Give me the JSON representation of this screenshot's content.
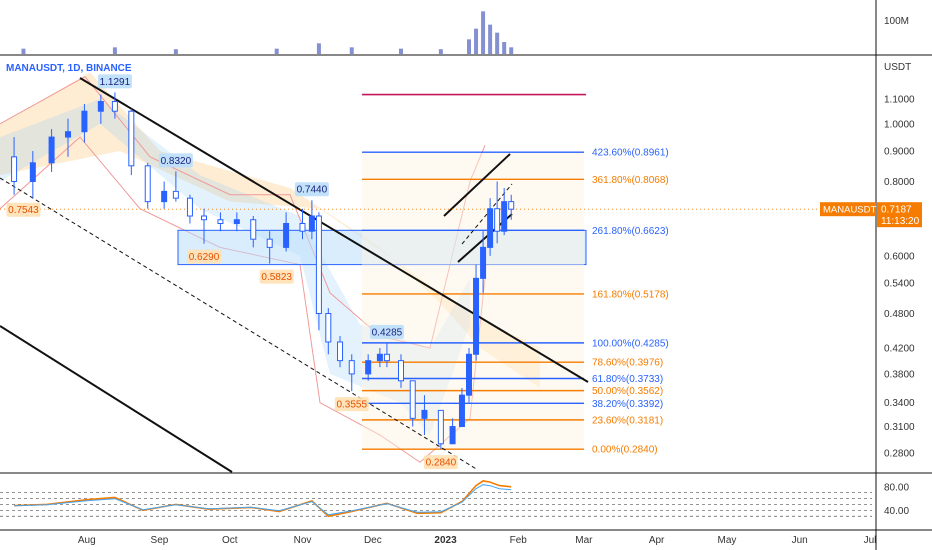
{
  "symbol": "MANAUSDT, 1D, BINANCE",
  "currency": "USDT",
  "volume_label": "100M",
  "price_tag": {
    "symbol": "MANAUSDT",
    "price": "0.7187",
    "countdown": "11:13:20",
    "value": 0.7187
  },
  "price_axis": {
    "ticks": [
      {
        "label": "1.1000",
        "value": 1.1
      },
      {
        "label": "1.0000",
        "value": 1.0
      },
      {
        "label": "0.9000",
        "value": 0.9
      },
      {
        "label": "0.8000",
        "value": 0.8
      },
      {
        "label": "0.6000",
        "value": 0.6
      },
      {
        "label": "0.5400",
        "value": 0.54
      },
      {
        "label": "0.4800",
        "value": 0.48
      },
      {
        "label": "0.4200",
        "value": 0.42
      },
      {
        "label": "0.3800",
        "value": 0.38
      },
      {
        "label": "0.3400",
        "value": 0.34
      },
      {
        "label": "0.3100",
        "value": 0.31
      },
      {
        "label": "0.2800",
        "value": 0.28
      }
    ]
  },
  "rsi_axis": {
    "ticks": [
      {
        "label": "80.00",
        "value": 80
      },
      {
        "label": "40.00",
        "value": 40
      }
    ]
  },
  "time_axis": {
    "ticks": [
      {
        "label": "Aug",
        "date": "2022-08-01"
      },
      {
        "label": "Sep",
        "date": "2022-09-01"
      },
      {
        "label": "Oct",
        "date": "2022-10-01"
      },
      {
        "label": "Nov",
        "date": "2022-11-01"
      },
      {
        "label": "Dec",
        "date": "2022-12-01"
      },
      {
        "label": "2023",
        "date": "2023-01-01"
      },
      {
        "label": "Feb",
        "date": "2023-02-01"
      },
      {
        "label": "Mar",
        "date": "2023-03-01"
      },
      {
        "label": "Apr",
        "date": "2023-04-01"
      },
      {
        "label": "May",
        "date": "2023-05-01"
      },
      {
        "label": "Jun",
        "date": "2023-06-01"
      },
      {
        "label": "Jul",
        "date": "2023-07-01"
      }
    ]
  },
  "price_labels": [
    {
      "text": "1.1291",
      "value": 1.1291,
      "date": "2022-08-13",
      "style": "blue"
    },
    {
      "text": "0.8320",
      "value": 0.832,
      "date": "2022-09-08",
      "style": "blue"
    },
    {
      "text": "0.7440",
      "value": 0.744,
      "date": "2022-11-05",
      "style": "blue"
    },
    {
      "text": "0.4285",
      "value": 0.4285,
      "date": "2022-12-07",
      "style": "blue"
    },
    {
      "text": "0.7543",
      "value": 0.7543,
      "date": "2022-07-05",
      "style": "orange"
    },
    {
      "text": "0.6290",
      "value": 0.629,
      "date": "2022-09-20",
      "style": "orange"
    },
    {
      "text": "0.5823",
      "value": 0.5823,
      "date": "2022-10-21",
      "style": "orange"
    },
    {
      "text": "0.3555",
      "value": 0.3555,
      "date": "2022-11-22",
      "style": "orange"
    },
    {
      "text": "0.2840",
      "value": 0.284,
      "date": "2022-12-30",
      "style": "orange"
    }
  ],
  "fib_levels": [
    {
      "label": "423.60%(0.8961)",
      "value": 0.8961,
      "color": "#2962ff"
    },
    {
      "label": "361.80%(0.8068)",
      "value": 0.8068,
      "color": "#f57c00"
    },
    {
      "label": "261.80%(0.6623)",
      "value": 0.6623,
      "color": "#2962ff"
    },
    {
      "label": "161.80%(0.5178)",
      "value": 0.5178,
      "color": "#f57c00"
    },
    {
      "label": "100.00%(0.4285)",
      "value": 0.4285,
      "color": "#2962ff"
    },
    {
      "label": "78.60%(0.3976)",
      "value": 0.3976,
      "color": "#f57c00"
    },
    {
      "label": "61.80%(0.3733)",
      "value": 0.3733,
      "color": "#2962ff"
    },
    {
      "label": "50.00%(0.3562)",
      "value": 0.3562,
      "color": "#f57c00"
    },
    {
      "label": "38.20%(0.3392)",
      "value": 0.3392,
      "color": "#2962ff"
    },
    {
      "label": "23.60%(0.3181)",
      "value": 0.3181,
      "color": "#f57c00"
    },
    {
      "label": "0.00%(0.2840)",
      "value": 0.284,
      "color": "#f57c00"
    }
  ],
  "chart_data": {
    "type": "candlestick",
    "title": "MANAUSDT, 1D, BINANCE",
    "price_range": [
      0.26,
      1.3
    ],
    "scale": "log",
    "x_range": [
      "2022-06-25",
      "2023-07-01"
    ],
    "ohlc": [
      {
        "date": "2022-07-01",
        "open": 0.88,
        "high": 0.95,
        "low": 0.76,
        "close": 0.8
      },
      {
        "date": "2022-07-09",
        "open": 0.8,
        "high": 0.9,
        "low": 0.75,
        "close": 0.86
      },
      {
        "date": "2022-07-17",
        "open": 0.86,
        "high": 0.98,
        "low": 0.83,
        "close": 0.95
      },
      {
        "date": "2022-07-24",
        "open": 0.95,
        "high": 1.02,
        "low": 0.88,
        "close": 0.97
      },
      {
        "date": "2022-07-31",
        "open": 0.97,
        "high": 1.08,
        "low": 0.93,
        "close": 1.05
      },
      {
        "date": "2022-08-07",
        "open": 1.05,
        "high": 1.12,
        "low": 1.0,
        "close": 1.09
      },
      {
        "date": "2022-08-13",
        "open": 1.09,
        "high": 1.1291,
        "low": 1.02,
        "close": 1.05
      },
      {
        "date": "2022-08-20",
        "open": 1.05,
        "high": 1.06,
        "low": 0.82,
        "close": 0.85
      },
      {
        "date": "2022-08-27",
        "open": 0.85,
        "high": 0.86,
        "low": 0.72,
        "close": 0.74
      },
      {
        "date": "2022-09-03",
        "open": 0.74,
        "high": 0.8,
        "low": 0.72,
        "close": 0.77
      },
      {
        "date": "2022-09-08",
        "open": 0.77,
        "high": 0.832,
        "low": 0.74,
        "close": 0.75
      },
      {
        "date": "2022-09-14",
        "open": 0.75,
        "high": 0.76,
        "low": 0.68,
        "close": 0.7
      },
      {
        "date": "2022-09-20",
        "open": 0.7,
        "high": 0.72,
        "low": 0.629,
        "close": 0.69
      },
      {
        "date": "2022-09-27",
        "open": 0.69,
        "high": 0.71,
        "low": 0.66,
        "close": 0.68
      },
      {
        "date": "2022-10-04",
        "open": 0.68,
        "high": 0.71,
        "low": 0.66,
        "close": 0.69
      },
      {
        "date": "2022-10-11",
        "open": 0.69,
        "high": 0.7,
        "low": 0.62,
        "close": 0.64
      },
      {
        "date": "2022-10-18",
        "open": 0.64,
        "high": 0.66,
        "low": 0.5823,
        "close": 0.62
      },
      {
        "date": "2022-10-25",
        "open": 0.62,
        "high": 0.71,
        "low": 0.61,
        "close": 0.68
      },
      {
        "date": "2022-11-01",
        "open": 0.68,
        "high": 0.72,
        "low": 0.64,
        "close": 0.66
      },
      {
        "date": "2022-11-05",
        "open": 0.66,
        "high": 0.744,
        "low": 0.64,
        "close": 0.7
      },
      {
        "date": "2022-11-08",
        "open": 0.7,
        "high": 0.71,
        "low": 0.45,
        "close": 0.48
      },
      {
        "date": "2022-11-12",
        "open": 0.48,
        "high": 0.49,
        "low": 0.41,
        "close": 0.43
      },
      {
        "date": "2022-11-17",
        "open": 0.43,
        "high": 0.44,
        "low": 0.39,
        "close": 0.4
      },
      {
        "date": "2022-11-22",
        "open": 0.4,
        "high": 0.41,
        "low": 0.3555,
        "close": 0.38
      },
      {
        "date": "2022-11-29",
        "open": 0.38,
        "high": 0.41,
        "low": 0.37,
        "close": 0.4
      },
      {
        "date": "2022-12-04",
        "open": 0.4,
        "high": 0.42,
        "low": 0.39,
        "close": 0.41
      },
      {
        "date": "2022-12-07",
        "open": 0.41,
        "high": 0.4285,
        "low": 0.39,
        "close": 0.4
      },
      {
        "date": "2022-12-13",
        "open": 0.4,
        "high": 0.41,
        "low": 0.36,
        "close": 0.37
      },
      {
        "date": "2022-12-18",
        "open": 0.37,
        "high": 0.37,
        "low": 0.31,
        "close": 0.32
      },
      {
        "date": "2022-12-23",
        "open": 0.32,
        "high": 0.35,
        "low": 0.3,
        "close": 0.33
      },
      {
        "date": "2022-12-30",
        "open": 0.33,
        "high": 0.33,
        "low": 0.284,
        "close": 0.29
      },
      {
        "date": "2023-01-04",
        "open": 0.29,
        "high": 0.32,
        "low": 0.29,
        "close": 0.31
      },
      {
        "date": "2023-01-08",
        "open": 0.31,
        "high": 0.36,
        "low": 0.31,
        "close": 0.35
      },
      {
        "date": "2023-01-11",
        "open": 0.35,
        "high": 0.42,
        "low": 0.34,
        "close": 0.41
      },
      {
        "date": "2023-01-14",
        "open": 0.41,
        "high": 0.58,
        "low": 0.4,
        "close": 0.55
      },
      {
        "date": "2023-01-17",
        "open": 0.55,
        "high": 0.66,
        "low": 0.52,
        "close": 0.62
      },
      {
        "date": "2023-01-20",
        "open": 0.62,
        "high": 0.75,
        "low": 0.6,
        "close": 0.72
      },
      {
        "date": "2023-01-23",
        "open": 0.72,
        "high": 0.8,
        "low": 0.63,
        "close": 0.66
      },
      {
        "date": "2023-01-26",
        "open": 0.66,
        "high": 0.78,
        "low": 0.65,
        "close": 0.74
      },
      {
        "date": "2023-01-29",
        "open": 0.74,
        "high": 0.76,
        "low": 0.69,
        "close": 0.7187
      }
    ],
    "volume": [
      {
        "date": "2022-07-05",
        "value": 20
      },
      {
        "date": "2022-08-13",
        "value": 25
      },
      {
        "date": "2022-09-08",
        "value": 18
      },
      {
        "date": "2022-10-21",
        "value": 20
      },
      {
        "date": "2022-11-08",
        "value": 40
      },
      {
        "date": "2022-11-22",
        "value": 25
      },
      {
        "date": "2022-12-13",
        "value": 20
      },
      {
        "date": "2022-12-30",
        "value": 18
      },
      {
        "date": "2023-01-11",
        "value": 55
      },
      {
        "date": "2023-01-14",
        "value": 95
      },
      {
        "date": "2023-01-17",
        "value": 160
      },
      {
        "date": "2023-01-20",
        "value": 110
      },
      {
        "date": "2023-01-23",
        "value": 80
      },
      {
        "date": "2023-01-26",
        "value": 45
      },
      {
        "date": "2023-01-29",
        "value": 25
      }
    ],
    "rsi": [
      {
        "date": "2022-07-01",
        "value": 48
      },
      {
        "date": "2022-07-15",
        "value": 50
      },
      {
        "date": "2022-08-01",
        "value": 58
      },
      {
        "date": "2022-08-13",
        "value": 62
      },
      {
        "date": "2022-08-25",
        "value": 40
      },
      {
        "date": "2022-09-08",
        "value": 50
      },
      {
        "date": "2022-09-22",
        "value": 42
      },
      {
        "date": "2022-10-10",
        "value": 45
      },
      {
        "date": "2022-10-22",
        "value": 38
      },
      {
        "date": "2022-11-05",
        "value": 56
      },
      {
        "date": "2022-11-12",
        "value": 30
      },
      {
        "date": "2022-11-22",
        "value": 38
      },
      {
        "date": "2022-12-07",
        "value": 52
      },
      {
        "date": "2022-12-20",
        "value": 35
      },
      {
        "date": "2022-12-30",
        "value": 36
      },
      {
        "date": "2023-01-08",
        "value": 55
      },
      {
        "date": "2023-01-14",
        "value": 82
      },
      {
        "date": "2023-01-17",
        "value": 90
      },
      {
        "date": "2023-01-20",
        "value": 88
      },
      {
        "date": "2023-01-24",
        "value": 82
      },
      {
        "date": "2023-01-29",
        "value": 80
      }
    ]
  }
}
